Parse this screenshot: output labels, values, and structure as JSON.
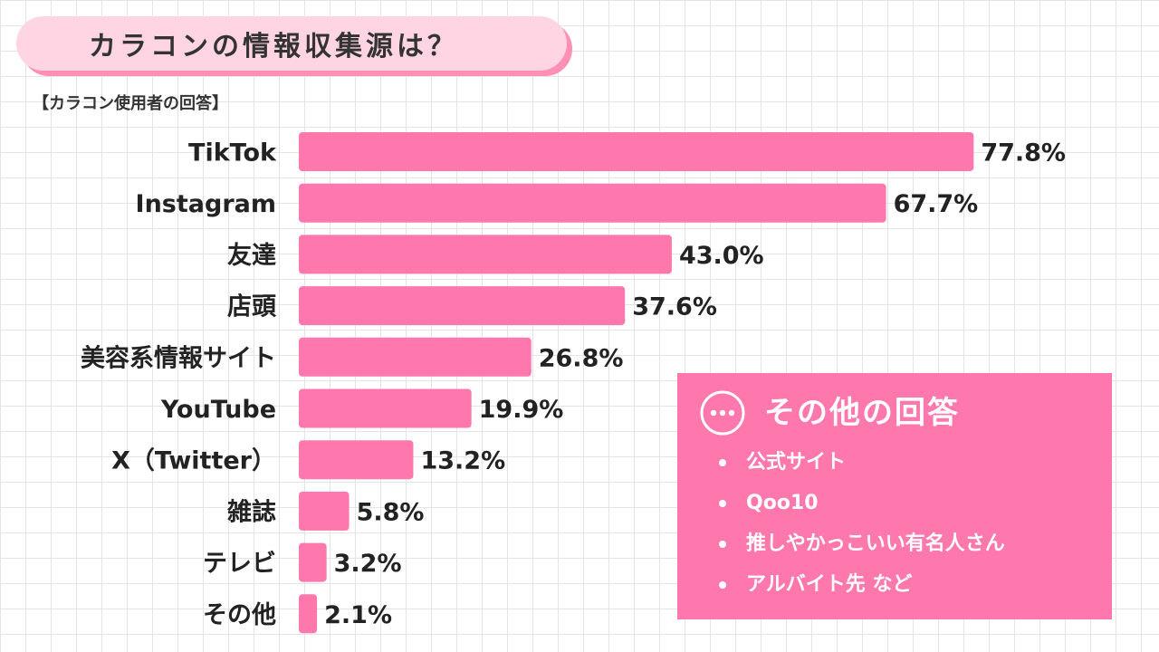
{
  "title": "カラコンの情報収集源は？",
  "subtitle": "【カラコン使用者の回答】",
  "chart_data": {
    "type": "bar",
    "orientation": "horizontal",
    "categories": [
      "TikTok",
      "Instagram",
      "友達",
      "店頭",
      "美容系情報サイト",
      "YouTube",
      "X（Twitter）",
      "雑誌",
      "テレビ",
      "その他"
    ],
    "values": [
      77.8,
      67.7,
      43.0,
      37.6,
      26.8,
      19.9,
      13.2,
      5.8,
      3.2,
      2.1
    ],
    "value_labels": [
      "77.8%",
      "67.7%",
      "43.0%",
      "37.6%",
      "26.8%",
      "19.9%",
      "13.2%",
      "5.8%",
      "3.2%",
      "2.1%"
    ],
    "unit": "%",
    "bar_color": "#ff78ad",
    "grid": false,
    "legend": "none"
  },
  "other_answers": {
    "title": "その他の回答",
    "icon": "speech-bubble-ellipsis-icon",
    "items": [
      "公式サイト",
      "Qoo10",
      "推しやかっこいい有名人さん",
      "アルバイト先 など"
    ]
  },
  "colors": {
    "accent": "#ff78ad",
    "banner_fill": "#ffd5e3",
    "banner_shadow": "#ff8fb5",
    "text": "#222222"
  }
}
